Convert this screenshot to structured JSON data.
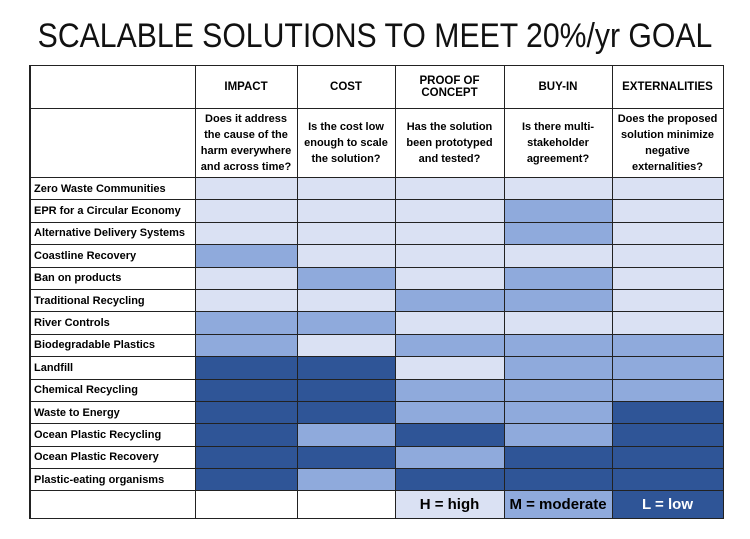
{
  "title": "SCALABLE SOLUTIONS TO MEET 20%/yr GOAL",
  "columns": [
    {
      "label": "IMPACT",
      "question": "Does it address the cause of the harm everywhere and across time?"
    },
    {
      "label": "COST",
      "question": "Is the cost low enough to scale the solution?"
    },
    {
      "label": "PROOF OF CONCEPT",
      "question": "Has the solution been prototyped and tested?"
    },
    {
      "label": "BUY-IN",
      "question": "Is there multi-stakeholder agreement?"
    },
    {
      "label": "EXTERNALITIES",
      "question": "Does the proposed solution minimize negative externalities?"
    }
  ],
  "rows": [
    {
      "label": "Zero Waste Communities",
      "ratings": [
        "H",
        "H",
        "H",
        "H",
        "H"
      ]
    },
    {
      "label": "EPR for a Circular Economy",
      "ratings": [
        "H",
        "H",
        "H",
        "M",
        "H"
      ]
    },
    {
      "label": "Alternative Delivery Systems",
      "ratings": [
        "H",
        "H",
        "H",
        "M",
        "H"
      ]
    },
    {
      "label": "Coastline Recovery",
      "ratings": [
        "M",
        "H",
        "H",
        "H",
        "H"
      ]
    },
    {
      "label": "Ban on products",
      "ratings": [
        "H",
        "M",
        "H",
        "M",
        "H"
      ]
    },
    {
      "label": "Traditional Recycling",
      "ratings": [
        "H",
        "H",
        "M",
        "M",
        "H"
      ]
    },
    {
      "label": "River Controls",
      "ratings": [
        "M",
        "M",
        "H",
        "H",
        "H"
      ]
    },
    {
      "label": "Biodegradable Plastics",
      "ratings": [
        "M",
        "H",
        "M",
        "M",
        "M"
      ]
    },
    {
      "label": "Landfill",
      "ratings": [
        "L",
        "L",
        "H",
        "M",
        "M"
      ]
    },
    {
      "label": "Chemical Recycling",
      "ratings": [
        "L",
        "L",
        "M",
        "M",
        "M"
      ]
    },
    {
      "label": "Waste to Energy",
      "ratings": [
        "L",
        "L",
        "M",
        "M",
        "L"
      ]
    },
    {
      "label": "Ocean Plastic Recycling",
      "ratings": [
        "L",
        "M",
        "L",
        "M",
        "L"
      ]
    },
    {
      "label": "Ocean  Plastic Recovery",
      "ratings": [
        "L",
        "L",
        "M",
        "L",
        "L"
      ]
    },
    {
      "label": "Plastic-eating organisms",
      "ratings": [
        "L",
        "M",
        "L",
        "L",
        "L"
      ]
    }
  ],
  "legend": [
    {
      "key": "H",
      "label": "H = high",
      "color": "#dae1f3"
    },
    {
      "key": "M",
      "label": "M = moderate",
      "color": "#8faadc"
    },
    {
      "key": "L",
      "label": "L = low",
      "color": "#2f5597"
    }
  ]
}
